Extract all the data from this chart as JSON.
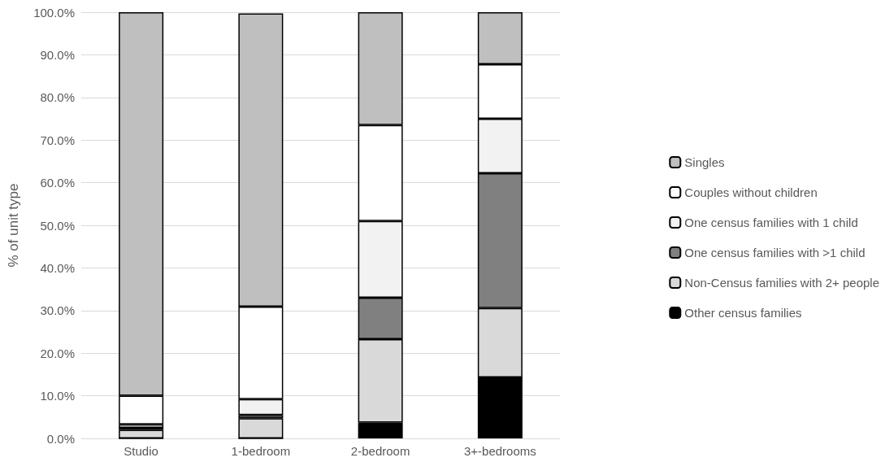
{
  "chart_data": {
    "type": "bar",
    "stacked": true,
    "ylabel": "% of unit type",
    "categories": [
      "Studio",
      "1-bedroom",
      "2-bedroom",
      "3+-bedrooms"
    ],
    "series": [
      {
        "name": "Other census families",
        "color": "#000000",
        "values": [
          0,
          0,
          3.7,
          14.3
        ]
      },
      {
        "name": "Non-Census families with 2+ people",
        "color": "#d9d9d9",
        "values": [
          2.0,
          4.7,
          19.6,
          16.3
        ]
      },
      {
        "name": "One census families with >1 child",
        "color": "#808080",
        "values": [
          0.5,
          0.8,
          9.7,
          31.6
        ]
      },
      {
        "name": "One census families with 1 child",
        "color": "#f2f2f2",
        "values": [
          0.8,
          3.7,
          18.0,
          12.8
        ]
      },
      {
        "name": "Couples without children",
        "color": "#ffffff",
        "values": [
          6.7,
          21.7,
          22.5,
          12.8
        ]
      },
      {
        "name": "Singles",
        "color": "#bfbfbf",
        "values": [
          90.0,
          68.8,
          26.5,
          12.2
        ]
      }
    ],
    "ylim": [
      0,
      100
    ],
    "yticks": [
      {
        "value": 0,
        "label": "0.0%"
      },
      {
        "value": 10,
        "label": "10.0%"
      },
      {
        "value": 20,
        "label": "20.0%"
      },
      {
        "value": 30,
        "label": "30.0%"
      },
      {
        "value": 40,
        "label": "40.0%"
      },
      {
        "value": 50,
        "label": "50.0%"
      },
      {
        "value": 60,
        "label": "60.0%"
      },
      {
        "value": 70,
        "label": "70.0%"
      },
      {
        "value": 80,
        "label": "80.0%"
      },
      {
        "value": 90,
        "label": "90.0%"
      },
      {
        "value": 100,
        "label": "100.0%"
      }
    ],
    "grid": "y",
    "legend": "right"
  }
}
